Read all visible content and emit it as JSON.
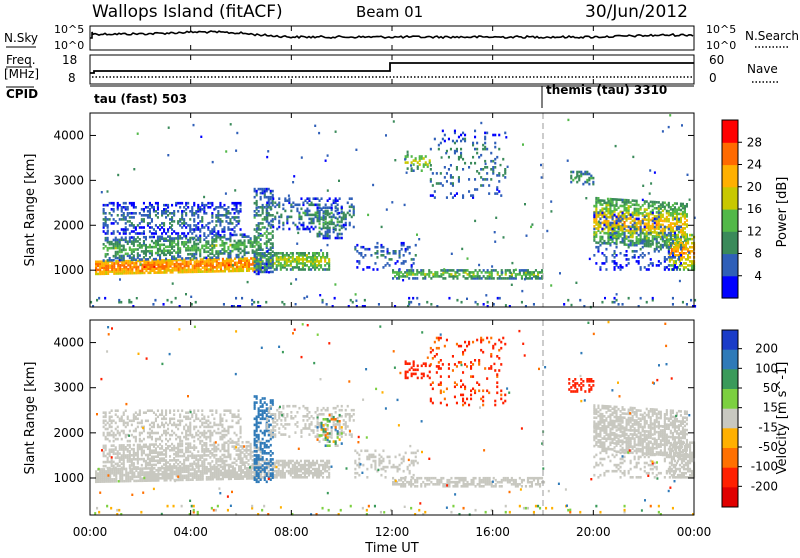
{
  "header": {
    "title": "Wallops Island (fitACF)",
    "beam": "Beam 01",
    "date": "30/Jun/2012"
  },
  "top_panels": {
    "nsky_label": "N.Sky",
    "nsky_ticks": [
      "10^5",
      "10^0"
    ],
    "nsearch_label": "N.Search",
    "nsearch_ticks": [
      "10^5",
      "10^0"
    ],
    "freq_label": "Freq.",
    "freq_unit": "[MHz]",
    "freq_ticks": [
      "18",
      "8"
    ],
    "nave_label": "Nave",
    "nave_ticks": [
      "60",
      "0"
    ],
    "cpid_label": "CPID",
    "cpid_segments": [
      {
        "label": "tau (fast) 503",
        "start_hour": 0
      },
      {
        "label": "themis (tau) 3310",
        "start_hour": 18
      }
    ]
  },
  "chart_data": [
    {
      "type": "heatmap",
      "name": "power",
      "ylabel": "Slant Range [km]",
      "yticks": [
        "1000",
        "2000",
        "3000",
        "4000"
      ],
      "ylim": [
        180,
        4500
      ],
      "colorbar_label": "Power [dB]",
      "colorbar_ticks": [
        "28",
        "24",
        "20",
        "16",
        "12",
        "8",
        "4"
      ],
      "colors": [
        "#0000ff",
        "#2f5fb8",
        "#3a8a5a",
        "#52b848",
        "#c8c800",
        "#ffb000",
        "#ff6a00",
        "#ff0000"
      ]
    },
    {
      "type": "heatmap",
      "name": "velocity",
      "ylabel": "Slant Range [km]",
      "yticks": [
        "1000",
        "2000",
        "3000",
        "4000"
      ],
      "ylim": [
        180,
        4500
      ],
      "colorbar_label": "Velocity [m s^-1]",
      "colorbar_ticks": [
        "200",
        "100",
        "50",
        "15",
        "-15",
        "-50",
        "-100",
        "-200"
      ],
      "colors": [
        "#1a3cc8",
        "#2f7ab8",
        "#3a9a5a",
        "#7cd040",
        "#c8c8c0",
        "#ffb000",
        "#ff7000",
        "#ff2000",
        "#e00000"
      ]
    }
  ],
  "xaxis": {
    "label": "Time UT",
    "ticks": [
      "00:00",
      "04:00",
      "08:00",
      "12:00",
      "16:00",
      "20:00",
      "00:00"
    ]
  }
}
